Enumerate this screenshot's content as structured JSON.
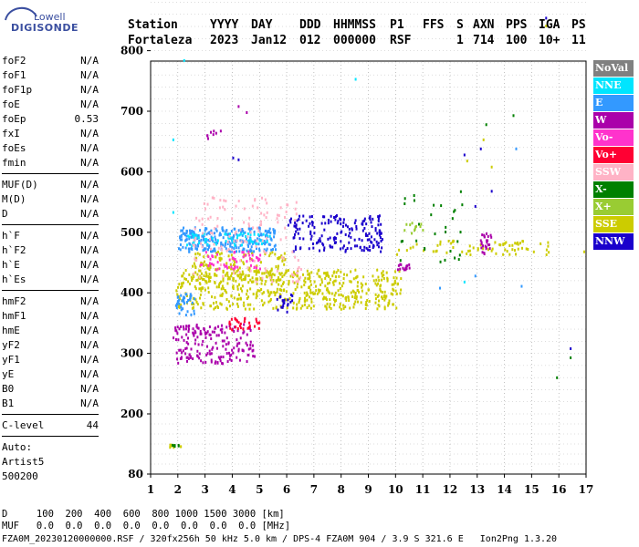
{
  "logo": {
    "line1": "Lowell",
    "line2": "DIGISONDE"
  },
  "header": {
    "row1": [
      "Station",
      "YYYY",
      "DAY",
      "DDD",
      "HHMMSS",
      "P1",
      "FFS",
      "S",
      "AXN",
      "PPS",
      "IGA",
      "PS"
    ],
    "row2": [
      "Fortaleza",
      "2023",
      "Jan12",
      "012",
      "000000",
      "RSF",
      "",
      "1",
      "714",
      "100",
      "10+",
      "11"
    ]
  },
  "params": [
    {
      "name": "foF2",
      "value": "N/A"
    },
    {
      "name": "foF1",
      "value": "N/A"
    },
    {
      "name": "foF1p",
      "value": "N/A"
    },
    {
      "name": "foE",
      "value": "N/A"
    },
    {
      "name": "foEp",
      "value": "0.53"
    },
    {
      "name": "fxI",
      "value": "N/A"
    },
    {
      "name": "foEs",
      "value": "N/A"
    },
    {
      "name": "fmin",
      "value": "N/A"
    },
    {
      "name": "MUF(D)",
      "value": "N/A"
    },
    {
      "name": "M(D)",
      "value": "N/A"
    },
    {
      "name": "D",
      "value": "N/A"
    },
    {
      "name": "h`F",
      "value": "N/A"
    },
    {
      "name": "h`F2",
      "value": "N/A"
    },
    {
      "name": "h`E",
      "value": "N/A"
    },
    {
      "name": "h`Es",
      "value": "N/A"
    },
    {
      "name": "hmF2",
      "value": "N/A"
    },
    {
      "name": "hmF1",
      "value": "N/A"
    },
    {
      "name": "hmE",
      "value": "N/A"
    },
    {
      "name": "yF2",
      "value": "N/A"
    },
    {
      "name": "yF1",
      "value": "N/A"
    },
    {
      "name": "yE",
      "value": "N/A"
    },
    {
      "name": "B0",
      "value": "N/A"
    },
    {
      "name": "B1",
      "value": "N/A"
    },
    {
      "name": "C-level",
      "value": "44"
    }
  ],
  "autoscaling": {
    "line1": "Auto:",
    "line2": "Artist5",
    "line3": "500200"
  },
  "legend": [
    {
      "label": "NoVal",
      "color": "#808080"
    },
    {
      "label": "NNE",
      "color": "#00e5ff"
    },
    {
      "label": "E",
      "color": "#3399ff"
    },
    {
      "label": "W",
      "color": "#aa00aa"
    },
    {
      "label": "Vo-",
      "color": "#ff33cc"
    },
    {
      "label": "Vo+",
      "color": "#ff0033"
    },
    {
      "label": "SSW",
      "color": "#ffb3c6"
    },
    {
      "label": "X-",
      "color": "#008000"
    },
    {
      "label": "X+",
      "color": "#99cc33"
    },
    {
      "label": "SSE",
      "color": "#cccc00"
    },
    {
      "label": "NNW",
      "color": "#1a00cc"
    }
  ],
  "footer": {
    "row_d": "D     100  200  400  600  800 1000 1500 3000 [km]",
    "row_muf": "MUF   0.0  0.0  0.0  0.0  0.0  0.0  0.0  0.0 [MHz]",
    "row_file": "FZA0M_20230120000000.RSF / 320fx256h 50 kHz 5.0 km / DPS-4 FZA0M 904 / 3.9 S 321.6 E   Ion2Png 1.3.20"
  },
  "chart_data": {
    "type": "scatter",
    "title": "",
    "xlabel": "",
    "ylabel": "",
    "xlim": [
      1,
      17
    ],
    "ylim": [
      80,
      900
    ],
    "xticks": [
      1,
      2,
      3,
      4,
      5,
      6,
      7,
      8,
      9,
      10,
      11,
      12,
      13,
      14,
      15,
      16,
      17
    ],
    "yticks": [
      80,
      200,
      300,
      400,
      500,
      600,
      700,
      800,
      900
    ],
    "grid": true,
    "legend_placement": "right",
    "clusters": [
      {
        "series": "SSE",
        "color": "#cccc00",
        "f": [
          1.9,
          10.2
        ],
        "h": [
          375,
          440
        ],
        "n": 520
      },
      {
        "series": "SSE",
        "color": "#cccc00",
        "f": [
          2.5,
          6.0
        ],
        "h": [
          420,
          470
        ],
        "n": 160
      },
      {
        "series": "SSE",
        "color": "#cccc00",
        "f": [
          10.0,
          15.6
        ],
        "h": [
          465,
          490
        ],
        "n": 70
      },
      {
        "series": "SSE",
        "color": "#cccc00",
        "f": [
          1.6,
          2.1
        ],
        "h": [
          135,
          142
        ],
        "n": 8
      },
      {
        "series": "E",
        "color": "#3399ff",
        "f": [
          2.0,
          5.6
        ],
        "h": [
          470,
          510
        ],
        "n": 260
      },
      {
        "series": "E",
        "color": "#3399ff",
        "f": [
          1.9,
          2.6
        ],
        "h": [
          365,
          400
        ],
        "n": 40
      },
      {
        "series": "NNE",
        "color": "#00e5ff",
        "f": [
          2.3,
          5.4
        ],
        "h": [
          480,
          500
        ],
        "n": 60
      },
      {
        "series": "NNW",
        "color": "#1a00cc",
        "f": [
          6.0,
          9.5
        ],
        "h": [
          470,
          530
        ],
        "n": 180
      },
      {
        "series": "NNW",
        "color": "#1a00cc",
        "f": [
          5.6,
          6.2
        ],
        "h": [
          370,
          400
        ],
        "n": 20
      },
      {
        "series": "SSW",
        "color": "#ffb3c6",
        "f": [
          2.5,
          6.5
        ],
        "h": [
          420,
          560
        ],
        "n": 140
      },
      {
        "series": "W",
        "color": "#aa00aa",
        "f": [
          1.8,
          4.8
        ],
        "h": [
          285,
          350
        ],
        "n": 180
      },
      {
        "series": "W",
        "color": "#aa00aa",
        "f": [
          13.1,
          13.5
        ],
        "h": [
          465,
          500
        ],
        "n": 25
      },
      {
        "series": "W",
        "color": "#aa00aa",
        "f": [
          10.0,
          10.5
        ],
        "h": [
          440,
          450
        ],
        "n": 15
      },
      {
        "series": "W",
        "color": "#aa00aa",
        "f": [
          3.0,
          3.6
        ],
        "h": [
          655,
          670
        ],
        "n": 8
      },
      {
        "series": "Vo-",
        "color": "#ff33cc",
        "f": [
          2.8,
          5.0
        ],
        "h": [
          440,
          470
        ],
        "n": 50
      },
      {
        "series": "Vo+",
        "color": "#ff0033",
        "f": [
          3.8,
          5.0
        ],
        "h": [
          340,
          360
        ],
        "n": 30
      },
      {
        "series": "X-",
        "color": "#008000",
        "f": [
          10.0,
          12.6
        ],
        "h": [
          450,
          570
        ],
        "n": 30
      },
      {
        "series": "X-",
        "color": "#008000",
        "f": [
          1.7,
          2.0
        ],
        "h": [
          138,
          142
        ],
        "n": 6
      },
      {
        "series": "X+",
        "color": "#99cc33",
        "f": [
          10.0,
          11.0
        ],
        "h": [
          500,
          520
        ],
        "n": 12
      }
    ],
    "points": [
      {
        "f": 2.2,
        "h": 786,
        "c": "#00e5ff"
      },
      {
        "f": 8.5,
        "h": 755,
        "c": "#00e5ff"
      },
      {
        "f": 1.8,
        "h": 655,
        "c": "#00e5ff"
      },
      {
        "f": 1.8,
        "h": 535,
        "c": "#00e5ff"
      },
      {
        "f": 15.5,
        "h": 856,
        "c": "#1a00cc"
      },
      {
        "f": 15.5,
        "h": 843,
        "c": "#cccc00"
      },
      {
        "f": 4.2,
        "h": 710,
        "c": "#aa00aa"
      },
      {
        "f": 4.5,
        "h": 700,
        "c": "#aa00aa"
      },
      {
        "f": 4.0,
        "h": 625,
        "c": "#1a00cc"
      },
      {
        "f": 4.2,
        "h": 622,
        "c": "#1a00cc"
      },
      {
        "f": 14.3,
        "h": 695,
        "c": "#008000"
      },
      {
        "f": 13.3,
        "h": 680,
        "c": "#008000"
      },
      {
        "f": 13.2,
        "h": 655,
        "c": "#cccc00"
      },
      {
        "f": 13.1,
        "h": 640,
        "c": "#1a00cc"
      },
      {
        "f": 14.4,
        "h": 640,
        "c": "#3399ff"
      },
      {
        "f": 13.5,
        "h": 610,
        "c": "#cccc00"
      },
      {
        "f": 12.5,
        "h": 630,
        "c": "#1a00cc"
      },
      {
        "f": 12.6,
        "h": 620,
        "c": "#cccc00"
      },
      {
        "f": 16.4,
        "h": 310,
        "c": "#1a00cc"
      },
      {
        "f": 16.4,
        "h": 295,
        "c": "#008000"
      },
      {
        "f": 15.9,
        "h": 262,
        "c": "#008000"
      },
      {
        "f": 16.9,
        "h": 470,
        "c": "#cccc00"
      },
      {
        "f": 14.6,
        "h": 413,
        "c": "#3399ff"
      },
      {
        "f": 12.5,
        "h": 420,
        "c": "#00e5ff"
      },
      {
        "f": 12.9,
        "h": 430,
        "c": "#3399ff"
      },
      {
        "f": 11.6,
        "h": 410,
        "c": "#3399ff"
      },
      {
        "f": 12.9,
        "h": 545,
        "c": "#1a00cc"
      },
      {
        "f": 13.5,
        "h": 570,
        "c": "#1a00cc"
      }
    ]
  }
}
